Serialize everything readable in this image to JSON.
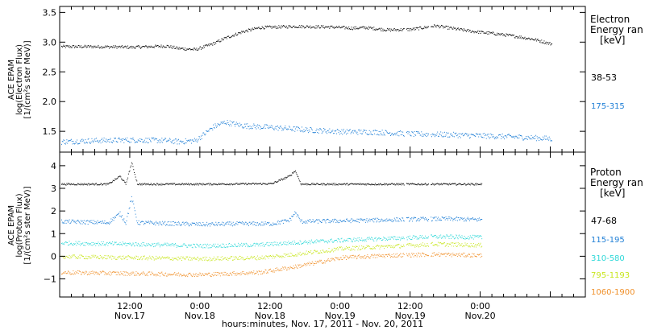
{
  "chart_data": [
    {
      "type": "scatter",
      "panel": "electron",
      "ylabel": [
        "ACE EPAM",
        "log(Electron Flux)",
        "[1/(cm²s ster MeV)]"
      ],
      "ylim": [
        1.15,
        3.6
      ],
      "yticks": [
        "1.5",
        "2.0",
        "2.5",
        "3.0",
        "3.5"
      ],
      "ytick_values": [
        1.5,
        2.0,
        2.5,
        3.0,
        3.5
      ],
      "legend_title": [
        "Electron",
        "Energy ran",
        "[keV]"
      ],
      "series": [
        {
          "name": "38-53",
          "color": "#000000",
          "points": [
            [
              0,
              2.93
            ],
            [
              6,
              2.93
            ],
            [
              12,
              2.92
            ],
            [
              18,
              2.94
            ],
            [
              20,
              2.9
            ],
            [
              23,
              2.88
            ],
            [
              26,
              2.98
            ],
            [
              28,
              3.07
            ],
            [
              31,
              3.18
            ],
            [
              34,
              3.25
            ],
            [
              40,
              3.27
            ],
            [
              46,
              3.26
            ],
            [
              50,
              3.24
            ],
            [
              52,
              3.25
            ],
            [
              56,
              3.21
            ],
            [
              60,
              3.22
            ],
            [
              64,
              3.28
            ],
            [
              66,
              3.25
            ],
            [
              70,
              3.19
            ],
            [
              74,
              3.15
            ],
            [
              78,
              3.1
            ],
            [
              81,
              3.05
            ],
            [
              84,
              2.97
            ]
          ]
        },
        {
          "name": "175-315",
          "color": "#1f7fd6",
          "points": [
            [
              0,
              1.33
            ],
            [
              6,
              1.35
            ],
            [
              12,
              1.36
            ],
            [
              18,
              1.35
            ],
            [
              20,
              1.33
            ],
            [
              23,
              1.35
            ],
            [
              26,
              1.58
            ],
            [
              28,
              1.66
            ],
            [
              31,
              1.6
            ],
            [
              36,
              1.57
            ],
            [
              42,
              1.53
            ],
            [
              48,
              1.5
            ],
            [
              54,
              1.49
            ],
            [
              60,
              1.46
            ],
            [
              66,
              1.45
            ],
            [
              72,
              1.43
            ],
            [
              78,
              1.41
            ],
            [
              84,
              1.38
            ]
          ]
        }
      ]
    },
    {
      "type": "scatter",
      "panel": "proton",
      "ylabel": [
        "ACE EPAM",
        "log(Proton Flux)",
        "[1/(cm²s ster MeV)]"
      ],
      "ylim": [
        -1.8,
        4.6
      ],
      "yticks": [
        "−1",
        "0",
        "1",
        "2",
        "3",
        "4"
      ],
      "ytick_values": [
        -1,
        0,
        1,
        2,
        3,
        4
      ],
      "xlabel": "hours:minutes, Nov. 17, 2011 - Nov. 20, 2011",
      "xlim": [
        0,
        90
      ],
      "xticks": [
        {
          "hours": 12,
          "time": "12:00",
          "date": "Nov.17"
        },
        {
          "hours": 24,
          "time": "0:00",
          "date": "Nov.18"
        },
        {
          "hours": 36,
          "time": "12:00",
          "date": "Nov.18"
        },
        {
          "hours": 48,
          "time": "0:00",
          "date": "Nov.19"
        },
        {
          "hours": 60,
          "time": "12:00",
          "date": "Nov.19"
        },
        {
          "hours": 72,
          "time": "0:00",
          "date": "Nov.20"
        }
      ],
      "legend_title": [
        "Proton",
        "Energy ran",
        "[keV]"
      ],
      "series": [
        {
          "name": "47-68",
          "color": "#000000",
          "points": [
            [
              0,
              3.2
            ],
            [
              8,
              3.2
            ],
            [
              10,
              3.55
            ],
            [
              11,
              3.2
            ],
            [
              12,
              4.15
            ],
            [
              13,
              3.2
            ],
            [
              24,
              3.2
            ],
            [
              36,
              3.22
            ],
            [
              39,
              3.55
            ],
            [
              40,
              3.8
            ],
            [
              41,
              3.2
            ],
            [
              48,
              3.2
            ],
            [
              60,
              3.2
            ],
            [
              72,
              3.2
            ]
          ]
        },
        {
          "name": "115-195",
          "color": "#1f7fd6",
          "points": [
            [
              0,
              1.55
            ],
            [
              8,
              1.5
            ],
            [
              10,
              1.9
            ],
            [
              11,
              1.5
            ],
            [
              12,
              2.6
            ],
            [
              13,
              1.5
            ],
            [
              24,
              1.42
            ],
            [
              30,
              1.45
            ],
            [
              36,
              1.45
            ],
            [
              39,
              1.6
            ],
            [
              40,
              1.95
            ],
            [
              41,
              1.55
            ],
            [
              48,
              1.58
            ],
            [
              56,
              1.62
            ],
            [
              60,
              1.65
            ],
            [
              66,
              1.67
            ],
            [
              72,
              1.63
            ]
          ]
        },
        {
          "name": "310-580",
          "color": "#2fd8d8",
          "points": [
            [
              0,
              0.6
            ],
            [
              12,
              0.55
            ],
            [
              24,
              0.47
            ],
            [
              34,
              0.52
            ],
            [
              40,
              0.62
            ],
            [
              48,
              0.72
            ],
            [
              56,
              0.8
            ],
            [
              64,
              0.88
            ],
            [
              72,
              0.85
            ]
          ]
        },
        {
          "name": "795-1193",
          "color": "#c8e61e",
          "points": [
            [
              0,
              0.0
            ],
            [
              12,
              -0.05
            ],
            [
              24,
              -0.1
            ],
            [
              34,
              -0.05
            ],
            [
              40,
              0.1
            ],
            [
              48,
              0.35
            ],
            [
              56,
              0.45
            ],
            [
              64,
              0.55
            ],
            [
              72,
              0.5
            ]
          ]
        },
        {
          "name": "1060-1900",
          "color": "#f0902a",
          "points": [
            [
              0,
              -0.7
            ],
            [
              12,
              -0.75
            ],
            [
              24,
              -0.8
            ],
            [
              34,
              -0.7
            ],
            [
              40,
              -0.45
            ],
            [
              48,
              -0.05
            ],
            [
              56,
              0.05
            ],
            [
              64,
              0.1
            ],
            [
              72,
              0.05
            ]
          ]
        }
      ]
    }
  ]
}
